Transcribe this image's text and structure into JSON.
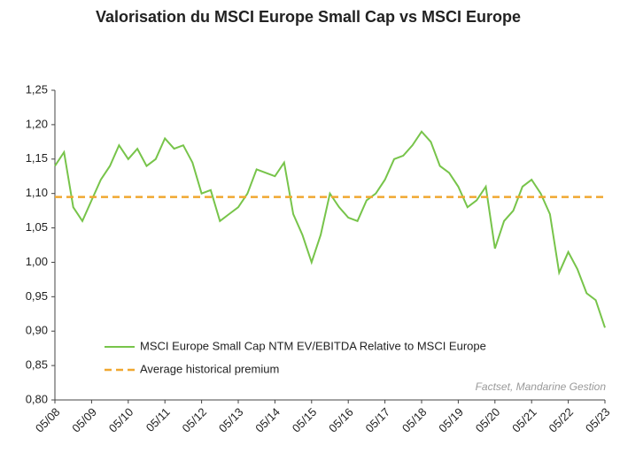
{
  "chart_data": {
    "type": "line",
    "title": "Valorisation du MSCI Europe Small Cap vs MSCI Europe",
    "annotation": "Factset, Mandarine Gestion",
    "x": [
      "05/08",
      "08/08",
      "11/08",
      "02/09",
      "05/09",
      "08/09",
      "11/09",
      "02/10",
      "05/10",
      "08/10",
      "11/10",
      "02/11",
      "05/11",
      "08/11",
      "11/11",
      "02/12",
      "05/12",
      "08/12",
      "11/12",
      "02/13",
      "05/13",
      "08/13",
      "11/13",
      "02/14",
      "05/14",
      "08/14",
      "11/14",
      "02/15",
      "05/15",
      "08/15",
      "11/15",
      "02/16",
      "05/16",
      "08/16",
      "11/16",
      "02/17",
      "05/17",
      "08/17",
      "11/17",
      "02/18",
      "05/18",
      "08/18",
      "11/18",
      "02/19",
      "05/19",
      "08/19",
      "11/19",
      "02/20",
      "05/20",
      "08/20",
      "11/20",
      "02/21",
      "05/21",
      "08/21",
      "11/21",
      "02/22",
      "05/22",
      "08/22",
      "11/22",
      "02/23",
      "05/23"
    ],
    "series": [
      {
        "name": "MSCI Europe Small Cap NTM EV/EBITDA Relative to MSCI Europe",
        "color": "#77c44a",
        "dashed": false,
        "values": [
          1.14,
          1.16,
          1.08,
          1.06,
          1.09,
          1.12,
          1.14,
          1.17,
          1.15,
          1.165,
          1.14,
          1.15,
          1.18,
          1.165,
          1.17,
          1.145,
          1.1,
          1.105,
          1.06,
          1.07,
          1.08,
          1.1,
          1.135,
          1.13,
          1.125,
          1.145,
          1.07,
          1.04,
          1.0,
          1.04,
          1.1,
          1.08,
          1.065,
          1.06,
          1.09,
          1.1,
          1.12,
          1.15,
          1.155,
          1.17,
          1.19,
          1.175,
          1.14,
          1.13,
          1.11,
          1.08,
          1.09,
          1.11,
          1.02,
          1.06,
          1.075,
          1.11,
          1.12,
          1.1,
          1.07,
          0.985,
          1.015,
          0.99,
          0.955,
          0.945,
          0.905
        ]
      },
      {
        "name": "Average historical premium",
        "color": "#f0a830",
        "dashed": true,
        "values": [
          1.095,
          1.095,
          1.095,
          1.095,
          1.095,
          1.095,
          1.095,
          1.095,
          1.095,
          1.095,
          1.095,
          1.095,
          1.095,
          1.095,
          1.095,
          1.095,
          1.095,
          1.095,
          1.095,
          1.095,
          1.095,
          1.095,
          1.095,
          1.095,
          1.095,
          1.095,
          1.095,
          1.095,
          1.095,
          1.095,
          1.095,
          1.095,
          1.095,
          1.095,
          1.095,
          1.095,
          1.095,
          1.095,
          1.095,
          1.095,
          1.095,
          1.095,
          1.095,
          1.095,
          1.095,
          1.095,
          1.095,
          1.095,
          1.095,
          1.095,
          1.095,
          1.095,
          1.095,
          1.095,
          1.095,
          1.095,
          1.095,
          1.095,
          1.095,
          1.095,
          1.095
        ]
      }
    ],
    "xlim": [
      "05/08",
      "05/23"
    ],
    "xticks": [
      "05/08",
      "05/09",
      "05/10",
      "05/11",
      "05/12",
      "05/13",
      "05/14",
      "05/15",
      "05/16",
      "05/17",
      "05/18",
      "05/19",
      "05/20",
      "05/21",
      "05/22",
      "05/23"
    ],
    "ylim": [
      0.8,
      1.25
    ],
    "yticks": [
      {
        "value": 0.8,
        "label": "0,80"
      },
      {
        "value": 0.85,
        "label": "0,85"
      },
      {
        "value": 0.9,
        "label": "0,90"
      },
      {
        "value": 0.95,
        "label": "0,95"
      },
      {
        "value": 1.0,
        "label": "1,00"
      },
      {
        "value": 1.05,
        "label": "1,05"
      },
      {
        "value": 1.1,
        "label": "1,10"
      },
      {
        "value": 1.15,
        "label": "1,15"
      },
      {
        "value": 1.2,
        "label": "1,20"
      },
      {
        "value": 1.25,
        "label": "1,25"
      }
    ],
    "grid": false,
    "legend": "lower left"
  }
}
